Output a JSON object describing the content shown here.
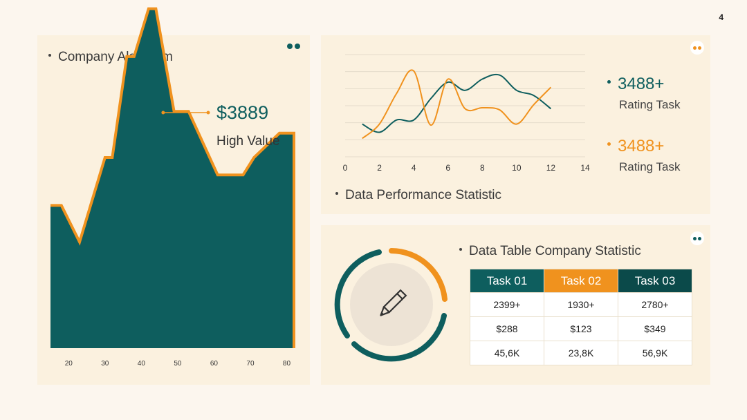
{
  "page_number": "4",
  "colors": {
    "teal": "#0e5e5e",
    "orange": "#f0921e",
    "panel_bg": "#fbf1df",
    "page_bg": "#fcf6ee",
    "dark_teal": "#0b4a4a"
  },
  "company_algorithm": {
    "title": "Company Algorithm",
    "dots_icon": "two-teal-dots-icon",
    "high_value": "$3889",
    "high_value_label": "High Value",
    "chart_data": {
      "type": "area",
      "x_tick_labels": [
        "20",
        "30",
        "40",
        "50",
        "60",
        "70",
        "80"
      ],
      "x": [
        15,
        18,
        23,
        30,
        32,
        36,
        38,
        42,
        44,
        49,
        53,
        61,
        68,
        71,
        78,
        82
      ],
      "values": [
        164,
        164,
        122,
        219,
        219,
        335,
        335,
        390,
        390,
        272,
        272,
        199,
        199,
        219,
        247,
        247
      ],
      "ylim": [
        0,
        400
      ],
      "xlim": [
        15,
        82
      ],
      "fill_color": "#0e5e5e",
      "outline_color": "#f0921e",
      "grid": false,
      "annotation": {
        "x": 46,
        "value": "$3889",
        "label": "High Value"
      }
    }
  },
  "performance": {
    "title": "Data Performance Statistic",
    "icon": "face-dots-icon",
    "chart_data": {
      "type": "line",
      "xlim": [
        0,
        14
      ],
      "ylim": [
        0,
        10
      ],
      "x_ticks": [
        "0",
        "2",
        "4",
        "6",
        "8",
        "10",
        "12",
        "14"
      ],
      "grid": true,
      "series": [
        {
          "color": "#0e5e5e",
          "x": [
            1,
            2,
            3,
            4,
            5,
            6,
            7,
            8,
            9,
            10,
            11,
            12
          ],
          "values": [
            3.2,
            2.4,
            3.6,
            3.6,
            5.7,
            7.3,
            6.5,
            7.6,
            8.0,
            6.5,
            6.0,
            4.7
          ]
        },
        {
          "color": "#f0921e",
          "x": [
            1,
            2,
            3,
            4,
            5,
            6,
            7,
            8,
            9,
            10,
            11,
            12
          ],
          "values": [
            1.8,
            3.2,
            6.2,
            8.4,
            3.1,
            7.6,
            4.7,
            4.8,
            4.6,
            3.2,
            5.1,
            6.8
          ]
        }
      ]
    },
    "stats": [
      {
        "value": "3488+",
        "label": "Rating Task",
        "color": "#0e5e5e"
      },
      {
        "value": "3488+",
        "label": "Rating Task",
        "color": "#f0921e"
      }
    ]
  },
  "company_table": {
    "title": "Data Table Company Statistic",
    "icon": "pencil-icon",
    "corner_icon": "two-teal-dots-icon",
    "headers": [
      "Task 01",
      "Task 02",
      "Task 03"
    ],
    "header_colors": [
      "#0e5e5e",
      "#f0921e",
      "#0b4a4a"
    ],
    "rows": [
      [
        "2399+",
        "1930+",
        "2780+"
      ],
      [
        "$288",
        "$123",
        "$349"
      ],
      [
        "45,6K",
        "23,8K",
        "56,9K"
      ]
    ]
  }
}
